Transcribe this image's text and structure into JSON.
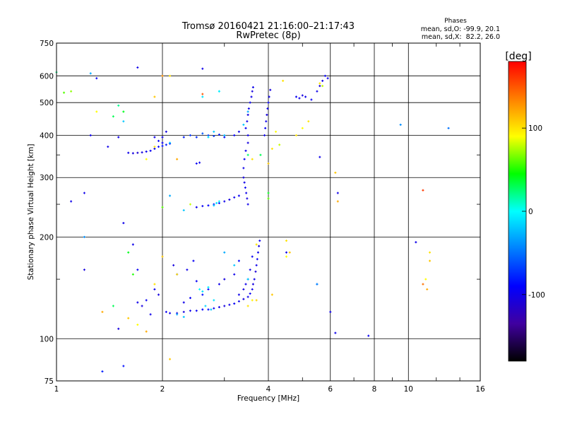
{
  "chart_data": {
    "type": "scatter",
    "title": "Tromsø 20160421 21:16:00–21:17:43",
    "subtitle": "RwPretec (8p)",
    "xlabel": "Frequency [MHz]",
    "ylabel": "Stationary phase Virtual Height [km]",
    "x_scale": "log",
    "y_scale": "log",
    "xlim": [
      1,
      16
    ],
    "ylim": [
      75,
      750
    ],
    "x_ticks": [
      1,
      2,
      4,
      6,
      8,
      10,
      16
    ],
    "x_minor_ticks": [
      3,
      5,
      7,
      9,
      12,
      14
    ],
    "y_ticks": [
      75,
      100,
      200,
      300,
      400,
      500,
      600,
      750
    ],
    "y_minor_ticks": [
      150,
      250,
      350
    ],
    "grid": true,
    "stats": {
      "heading": "Phases",
      "line_o": "mean, sd,O: -99.9, 20.1",
      "line_x": "mean, sd,X:  82.2, 26.0"
    },
    "colorbar": {
      "label": "[deg]",
      "range": [
        -180,
        180
      ],
      "ticks": [
        100,
        0,
        -100
      ],
      "colors": [
        "#ff0000",
        "#ff8000",
        "#ffff00",
        "#00ff00",
        "#00ffff",
        "#0080ff",
        "#0000ff",
        "#4000a0",
        "#000000"
      ]
    },
    "series": [
      {
        "points": [
          [
            2.05,
            120,
            -95
          ],
          [
            2.1,
            119,
            -100
          ],
          [
            2.2,
            119,
            -110
          ],
          [
            2.3,
            120,
            -105
          ],
          [
            2.4,
            121,
            -100
          ],
          [
            2.5,
            121,
            -95
          ],
          [
            2.6,
            122,
            -90
          ],
          [
            2.7,
            122,
            -85
          ],
          [
            2.8,
            123,
            -95
          ],
          [
            2.9,
            124,
            -100
          ],
          [
            3.0,
            125,
            -105
          ],
          [
            3.1,
            126,
            -100
          ],
          [
            3.2,
            127,
            -95
          ],
          [
            3.3,
            129,
            -100
          ],
          [
            3.4,
            131,
            -105
          ],
          [
            3.5,
            133,
            -100
          ],
          [
            3.55,
            136,
            -95
          ],
          [
            3.6,
            140,
            -100
          ],
          [
            3.62,
            145,
            -105
          ],
          [
            3.65,
            150,
            -100
          ],
          [
            3.68,
            158,
            -110
          ],
          [
            3.7,
            165,
            -100
          ],
          [
            3.72,
            172,
            -95
          ],
          [
            3.74,
            180,
            -100
          ],
          [
            3.76,
            188,
            -105
          ],
          [
            3.78,
            195,
            -100
          ],
          [
            3.5,
            150,
            -95
          ],
          [
            3.45,
            145,
            -100
          ],
          [
            3.4,
            140,
            -105
          ],
          [
            3.3,
            135,
            -100
          ],
          [
            3.55,
            160,
            -100
          ],
          [
            3.6,
            175,
            -95
          ],
          [
            2.3,
            128,
            -100
          ],
          [
            2.4,
            132,
            -95
          ],
          [
            2.6,
            135,
            -85
          ],
          [
            2.7,
            140,
            -90
          ],
          [
            2.9,
            145,
            -100
          ],
          [
            3.0,
            150,
            -105
          ],
          [
            3.2,
            155,
            -100
          ],
          [
            2.5,
            148,
            -95
          ],
          [
            2.2,
            155,
            -100
          ],
          [
            2.15,
            165,
            -105
          ],
          [
            2.35,
            160,
            -100
          ],
          [
            2.45,
            170,
            -95
          ],
          [
            3.5,
            250,
            -100
          ],
          [
            3.48,
            260,
            -105
          ],
          [
            3.46,
            270,
            -100
          ],
          [
            3.44,
            280,
            -95
          ],
          [
            3.42,
            290,
            -100
          ],
          [
            3.4,
            300,
            -105
          ],
          [
            3.4,
            320,
            -100
          ],
          [
            3.42,
            340,
            -95
          ],
          [
            3.45,
            360,
            -100
          ],
          [
            3.5,
            380,
            -105
          ],
          [
            3.5,
            400,
            -100
          ],
          [
            3.45,
            420,
            -95
          ],
          [
            3.48,
            440,
            -100
          ],
          [
            3.5,
            460,
            -105
          ],
          [
            3.52,
            480,
            -100
          ],
          [
            3.55,
            500,
            -95
          ],
          [
            3.58,
            520,
            -100
          ],
          [
            3.6,
            540,
            -105
          ],
          [
            3.62,
            555,
            -100
          ],
          [
            3.9,
            400,
            -100
          ],
          [
            3.92,
            420,
            -95
          ],
          [
            3.94,
            440,
            -100
          ],
          [
            3.96,
            460,
            -105
          ],
          [
            3.98,
            480,
            -100
          ],
          [
            4.0,
            500,
            -95
          ],
          [
            4.02,
            520,
            -100
          ],
          [
            4.05,
            545,
            -105
          ],
          [
            2.5,
            245,
            -100
          ],
          [
            2.6,
            247,
            -95
          ],
          [
            2.7,
            248,
            -90
          ],
          [
            2.8,
            250,
            -85
          ],
          [
            2.9,
            252,
            -95
          ],
          [
            3.0,
            255,
            -100
          ],
          [
            3.1,
            258,
            -105
          ],
          [
            3.2,
            262,
            -100
          ],
          [
            3.3,
            265,
            -95
          ],
          [
            1.6,
            355,
            -100
          ],
          [
            1.65,
            354,
            -105
          ],
          [
            1.7,
            355,
            -110
          ],
          [
            1.75,
            356,
            -105
          ],
          [
            1.8,
            358,
            -100
          ],
          [
            1.85,
            360,
            -95
          ],
          [
            1.9,
            365,
            -100
          ],
          [
            1.95,
            370,
            -90
          ],
          [
            2.0,
            372,
            -85
          ],
          [
            2.05,
            375,
            -80
          ],
          [
            2.1,
            378,
            -90
          ],
          [
            2.0,
            380,
            -95
          ],
          [
            2.0,
            395,
            -100
          ],
          [
            2.05,
            410,
            -105
          ],
          [
            1.9,
            395,
            -100
          ],
          [
            1.95,
            385,
            -95
          ],
          [
            2.3,
            395,
            -80
          ],
          [
            2.4,
            400,
            -70
          ],
          [
            2.5,
            395,
            -75
          ],
          [
            2.6,
            405,
            -60
          ],
          [
            2.7,
            400,
            -65
          ],
          [
            2.8,
            398,
            -70
          ],
          [
            2.9,
            402,
            -80
          ],
          [
            3.0,
            395,
            -90
          ],
          [
            3.2,
            400,
            -95
          ],
          [
            3.3,
            410,
            -100
          ],
          [
            2.5,
            330,
            -95
          ],
          [
            2.55,
            332,
            -100
          ],
          [
            4.8,
            520,
            -95
          ],
          [
            4.9,
            515,
            -100
          ],
          [
            5.0,
            525,
            -105
          ],
          [
            5.1,
            520,
            -100
          ],
          [
            5.3,
            510,
            -95
          ],
          [
            5.5,
            540,
            -100
          ],
          [
            5.6,
            560,
            -105
          ],
          [
            5.7,
            580,
            -100
          ],
          [
            5.8,
            600,
            -95
          ],
          [
            5.9,
            590,
            -100
          ],
          [
            1.7,
            128,
            -100
          ],
          [
            1.75,
            125,
            -105
          ],
          [
            1.8,
            130,
            -95
          ],
          [
            1.85,
            118,
            -100
          ],
          [
            1.9,
            140,
            -100
          ],
          [
            1.95,
            135,
            -105
          ],
          [
            1.2,
            270,
            -100
          ],
          [
            1.2,
            160,
            -105
          ],
          [
            1.25,
            400,
            -100
          ],
          [
            1.3,
            590,
            -95
          ],
          [
            1.5,
            395,
            -100
          ],
          [
            1.5,
            107,
            -105
          ],
          [
            1.65,
            190,
            -100
          ],
          [
            1.7,
            160,
            -95
          ],
          [
            1.4,
            370,
            -100
          ],
          [
            1.55,
            220,
            -100
          ],
          [
            1.1,
            255,
            -100
          ],
          [
            3.3,
            170,
            -90
          ],
          [
            4.5,
            180,
            -100
          ],
          [
            5.5,
            145,
            -90
          ],
          [
            6.0,
            120,
            -100
          ],
          [
            6.2,
            104,
            -100
          ],
          [
            7.7,
            102,
            -95
          ],
          [
            10.5,
            193,
            -100
          ],
          [
            5.6,
            345,
            -100
          ],
          [
            6.3,
            270,
            -100
          ],
          [
            1.35,
            80,
            -80
          ],
          [
            1.55,
            83,
            -85
          ],
          [
            2.6,
            630,
            -100
          ],
          [
            1.7,
            635,
            -100
          ]
        ]
      },
      {
        "points": [
          [
            1.05,
            535,
            60
          ],
          [
            1.1,
            540,
            70
          ],
          [
            1.3,
            470,
            90
          ],
          [
            1.45,
            455,
            30
          ],
          [
            1.5,
            490,
            20
          ],
          [
            1.55,
            470,
            40
          ],
          [
            1.9,
            520,
            110
          ],
          [
            2.0,
            600,
            130
          ],
          [
            2.1,
            600,
            100
          ],
          [
            2.6,
            530,
            150
          ],
          [
            2.9,
            540,
            -10
          ],
          [
            3.5,
            350,
            25
          ],
          [
            3.6,
            340,
            100
          ],
          [
            4.0,
            330,
            110
          ],
          [
            4.1,
            365,
            100
          ],
          [
            4.2,
            410,
            90
          ],
          [
            4.3,
            375,
            80
          ],
          [
            4.4,
            580,
            100
          ],
          [
            4.8,
            400,
            100
          ],
          [
            5.0,
            420,
            90
          ],
          [
            5.2,
            440,
            100
          ],
          [
            5.6,
            570,
            100
          ],
          [
            5.7,
            560,
            80
          ],
          [
            6.2,
            310,
            110
          ],
          [
            4.0,
            270,
            40
          ],
          [
            4.0,
            260,
            60
          ],
          [
            4.5,
            195,
            100
          ],
          [
            4.6,
            180,
            110
          ],
          [
            4.5,
            175,
            90
          ],
          [
            3.5,
            125,
            100
          ],
          [
            3.6,
            130,
            95
          ],
          [
            3.7,
            130,
            105
          ],
          [
            4.1,
            135,
            110
          ],
          [
            1.6,
            180,
            40
          ],
          [
            1.65,
            155,
            50
          ],
          [
            1.9,
            145,
            100
          ],
          [
            1.6,
            115,
            110
          ],
          [
            1.7,
            110,
            90
          ],
          [
            1.8,
            105,
            120
          ],
          [
            2.0,
            175,
            110
          ],
          [
            2.0,
            245,
            60
          ],
          [
            2.2,
            155,
            100
          ],
          [
            2.1,
            87,
            110
          ],
          [
            11.0,
            275,
            160
          ],
          [
            11.5,
            180,
            100
          ],
          [
            11.5,
            170,
            110
          ],
          [
            11.3,
            140,
            120
          ],
          [
            11.0,
            145,
            140
          ],
          [
            11.2,
            150,
            90
          ],
          [
            1.35,
            120,
            120
          ],
          [
            1.45,
            125,
            30
          ],
          [
            1.0,
            615,
            20
          ],
          [
            6.3,
            255,
            120
          ],
          [
            3.7,
            190,
            100
          ],
          [
            3.8,
            350,
            30
          ],
          [
            2.2,
            340,
            120
          ],
          [
            2.4,
            250,
            80
          ],
          [
            1.9,
            370,
            100
          ],
          [
            1.8,
            340,
            90
          ]
        ]
      },
      {
        "points": [
          [
            2.8,
            248,
            -20
          ],
          [
            2.85,
            252,
            -10
          ],
          [
            2.9,
            255,
            -5
          ],
          [
            2.55,
            140,
            0
          ],
          [
            2.6,
            138,
            -10
          ],
          [
            2.7,
            142,
            -5
          ],
          [
            2.65,
            125,
            -15
          ],
          [
            2.75,
            122,
            -20
          ],
          [
            2.8,
            130,
            -10
          ],
          [
            2.2,
            118,
            -30
          ],
          [
            2.3,
            116,
            -20
          ],
          [
            2.6,
            520,
            -10
          ],
          [
            2.9,
            540,
            -5
          ],
          [
            1.25,
            610,
            -30
          ],
          [
            1.55,
            440,
            -20
          ],
          [
            2.1,
            380,
            -20
          ],
          [
            3.0,
            400,
            -25
          ],
          [
            3.5,
            470,
            -30
          ],
          [
            3.4,
            430,
            -20
          ],
          [
            9.5,
            430,
            -40
          ],
          [
            13.0,
            420,
            -50
          ],
          [
            1.2,
            200,
            -40
          ],
          [
            3.2,
            165,
            -20
          ],
          [
            3.5,
            150,
            -15
          ],
          [
            2.1,
            265,
            -30
          ],
          [
            2.3,
            240,
            -20
          ],
          [
            2.7,
            395,
            -10
          ],
          [
            2.8,
            410,
            -20
          ],
          [
            5.5,
            145,
            -40
          ],
          [
            3.0,
            180,
            -30
          ]
        ]
      }
    ]
  }
}
